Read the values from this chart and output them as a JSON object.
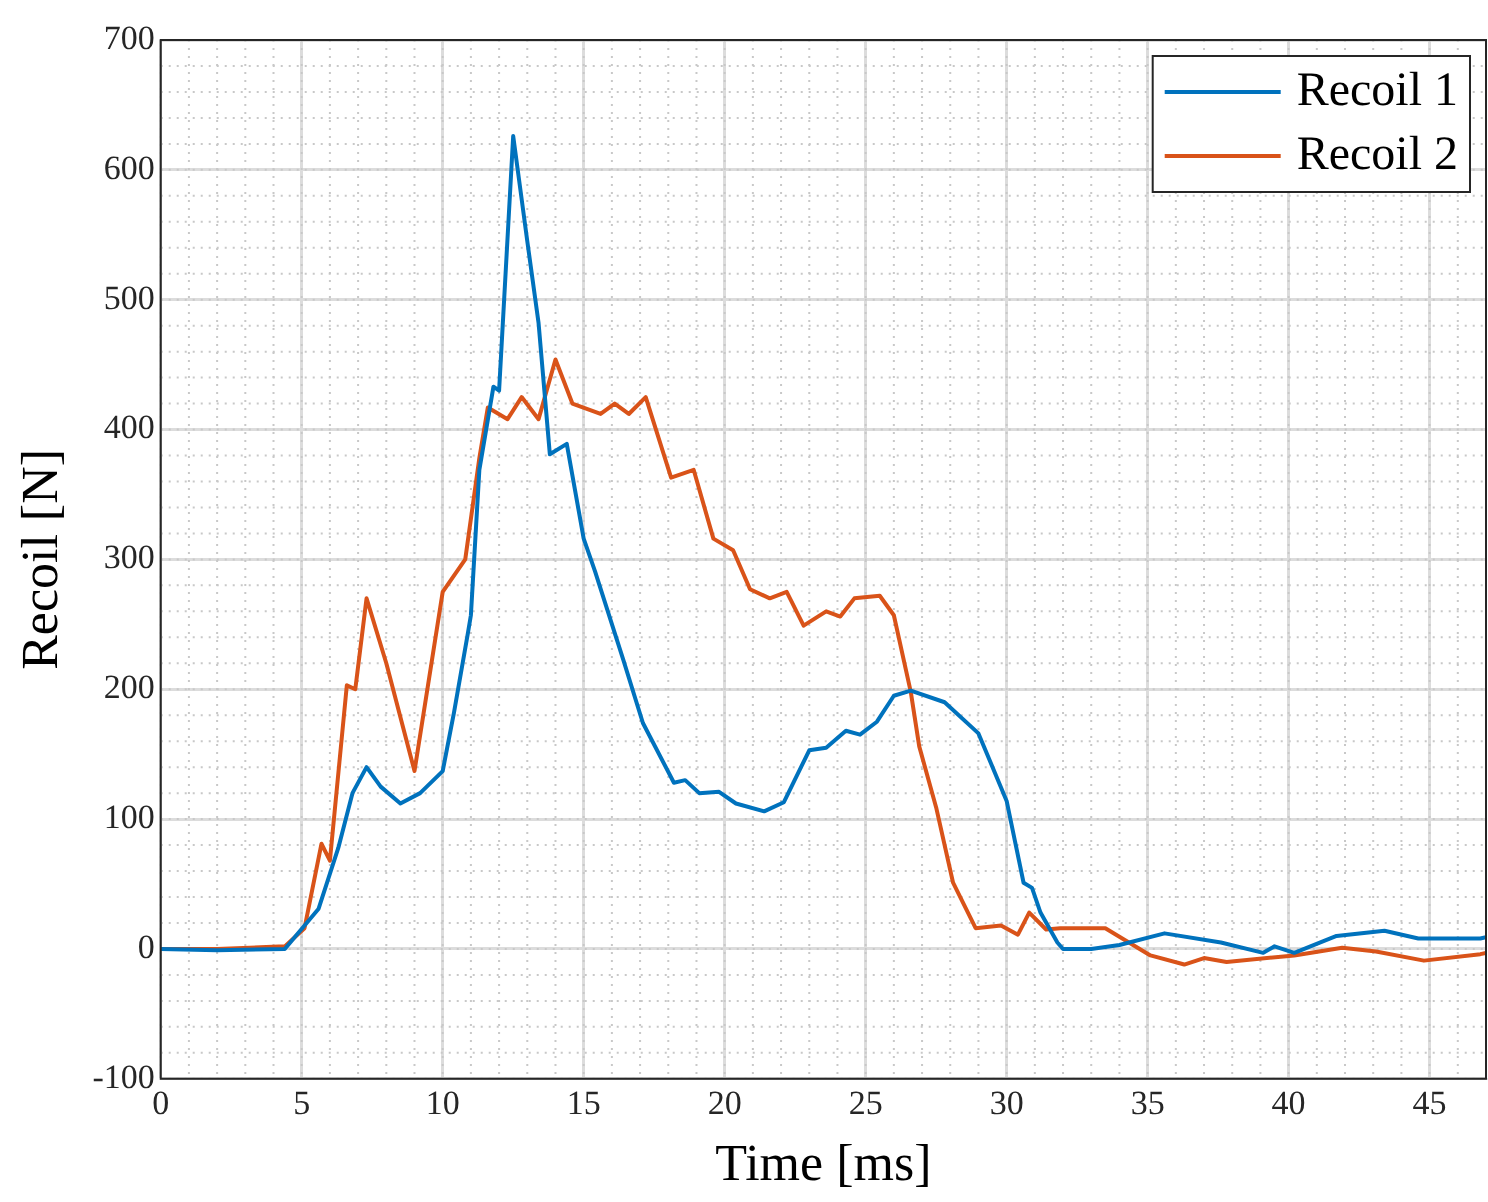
{
  "chart_data": {
    "type": "line",
    "xlabel": "Time [ms]",
    "ylabel": "Recoil [N]",
    "xlim": [
      0,
      47
    ],
    "xticks": [
      0,
      5,
      10,
      15,
      20,
      25,
      30,
      35,
      40,
      45
    ],
    "ylim": [
      -100,
      700
    ],
    "yticks": [
      -100,
      0,
      100,
      200,
      300,
      400,
      500,
      600,
      700
    ],
    "grid": true,
    "legend": "top right",
    "marker": "none",
    "line_style": "solid",
    "series": [
      {
        "name": "Recoil 1",
        "color": "#0072bd",
        "x": [
          0,
          2,
          4.4,
          5.6,
          6.3,
          6.8,
          7.3,
          7.8,
          8.5,
          9.2,
          10,
          10.4,
          10.9,
          11,
          11.3,
          11.8,
          12,
          12.5,
          13,
          13.4,
          13.8,
          14.4,
          15,
          15.4,
          16.4,
          17.1,
          18.2,
          18.6,
          19.1,
          19.8,
          20.4,
          21.4,
          22.1,
          23,
          23.6,
          24.3,
          24.8,
          25.4,
          26,
          26.6,
          27.8,
          29,
          30,
          30.6,
          30.9,
          31.2,
          31.8,
          32,
          33,
          34,
          35.6,
          37.6,
          39.1,
          39.5,
          40.2,
          41.7,
          43.4,
          44.6,
          46.8,
          47
        ],
        "values": [
          0,
          -1,
          0,
          31,
          78,
          120,
          140,
          125,
          112,
          120,
          137,
          182,
          244,
          257,
          369,
          433,
          430,
          626,
          545,
          482,
          381,
          389,
          316,
          291,
          223,
          174,
          128,
          130,
          120,
          121,
          112,
          106,
          113,
          153,
          155,
          168,
          165,
          175,
          195,
          199,
          190,
          166,
          114,
          51,
          47,
          28,
          5,
          0,
          0,
          3,
          12,
          5,
          -3,
          2,
          -3,
          10,
          14,
          8,
          8,
          9
        ]
      },
      {
        "name": "Recoil 2",
        "color": "#d95319",
        "x": [
          0,
          2,
          4.4,
          5.1,
          5.7,
          6,
          6.6,
          6.9,
          7.3,
          8,
          9,
          10,
          10.8,
          11.3,
          11.6,
          12.3,
          12.8,
          13.4,
          14,
          14.6,
          15.6,
          16.1,
          16.6,
          17.2,
          18.1,
          18.9,
          19.6,
          20.3,
          20.9,
          21.6,
          22.2,
          22.8,
          23.6,
          24.1,
          24.6,
          25.5,
          26,
          26.6,
          26.9,
          27.5,
          28.1,
          28.9,
          29.8,
          30.4,
          30.8,
          31.4,
          31.9,
          33.5,
          35.1,
          36.3,
          37,
          37.8,
          40.2,
          41.9,
          43.1,
          44.8,
          46.8,
          47
        ],
        "values": [
          0,
          0,
          2,
          16,
          81,
          68,
          203,
          200,
          270,
          220,
          137,
          275,
          300,
          378,
          417,
          408,
          425,
          408,
          454,
          420,
          412,
          420,
          412,
          425,
          363,
          369,
          316,
          307,
          277,
          270,
          275,
          249,
          260,
          256,
          270,
          272,
          257,
          198,
          156,
          109,
          51,
          16,
          18,
          11,
          28,
          15,
          16,
          16,
          -5,
          -12,
          -7,
          -10,
          -5,
          1,
          -2,
          -9,
          -4,
          -3
        ]
      }
    ]
  }
}
